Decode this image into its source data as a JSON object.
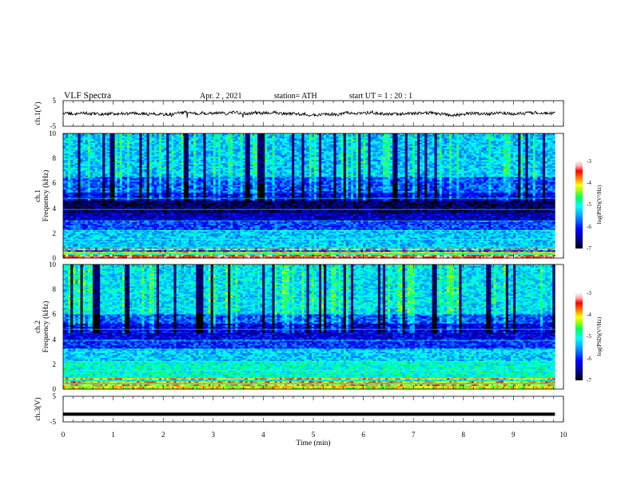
{
  "header": {
    "title": "VLF  Spectra",
    "date": "Apr. 2  , 2021",
    "station": "station= ATH",
    "start": "start  UT  =    1  : 20 : 1"
  },
  "chart_data": [
    {
      "id": "ch1-waveform",
      "type": "line",
      "ylabel": "ch.1(V)",
      "ylim": [
        -5,
        5
      ],
      "yticks": [
        "5",
        "-5"
      ],
      "xlim": [
        0,
        10
      ],
      "visible_xmax": 9.83,
      "trace": "noisy waveform centred near 0 V, amplitude about ±1 V"
    },
    {
      "id": "ch1-spectrogram",
      "type": "heatmap",
      "ylabel": "ch.1\nFrequency  (kHz)",
      "xlim": [
        0,
        10
      ],
      "ylim": [
        0,
        10
      ],
      "yticks": [
        "0",
        "2",
        "4",
        "6",
        "8",
        "10"
      ],
      "colorbar": {
        "label": "log(PSD)(V²/Hz)",
        "range": [
          -7,
          -3
        ],
        "ticks": [
          "-3",
          "-4",
          "-5",
          "-6",
          "-7"
        ]
      },
      "visible_xmax": 9.83
    },
    {
      "id": "ch2-spectrogram",
      "type": "heatmap",
      "ylabel": "ch.2\nFrequency  (kHz)",
      "xlim": [
        0,
        10
      ],
      "ylim": [
        0,
        10
      ],
      "yticks": [
        "0",
        "2",
        "4",
        "6",
        "8",
        "10"
      ],
      "colorbar": {
        "label": "log(PSD)(V²/Hz)",
        "range": [
          -7,
          -3
        ],
        "ticks": [
          "-3",
          "-4",
          "-5",
          "-6",
          "-7"
        ]
      },
      "visible_xmax": 9.83
    },
    {
      "id": "ch3-waveform",
      "type": "line",
      "ylabel": "ch.3(V)",
      "ylim": [
        -5,
        5
      ],
      "yticks": [
        "5",
        "-5"
      ],
      "xlim": [
        0,
        10
      ],
      "visible_xmax": 9.83,
      "trace": "flat thick line at about -2 V"
    }
  ],
  "xaxis": {
    "label": "Time  (min)",
    "ticks": [
      "0",
      "1",
      "2",
      "3",
      "4",
      "5",
      "6",
      "7",
      "8",
      "9",
      "10"
    ]
  },
  "colors": {
    "colormap": [
      "#000080",
      "#0000ff",
      "#00aaff",
      "#00ffff",
      "#00ff80",
      "#80ff00",
      "#ffff00",
      "#ff8000",
      "#ff0000",
      "#ffffff"
    ]
  }
}
